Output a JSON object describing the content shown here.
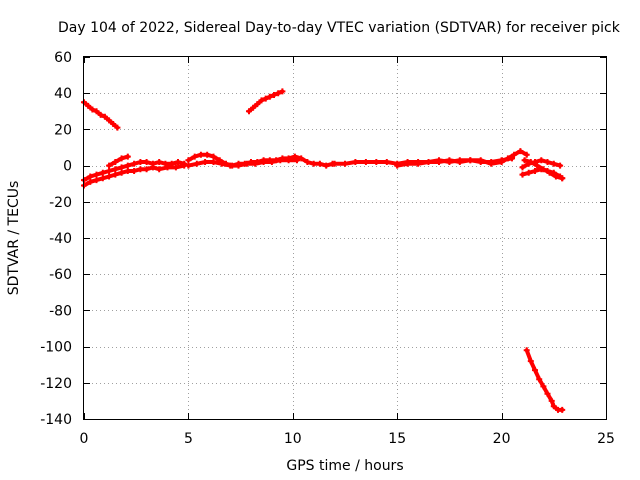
{
  "chart_data": {
    "type": "scatter",
    "title": "Day 104 of 2022, Sidereal Day-to-day VTEC variation (SDTVAR) for receiver pick",
    "xlabel": "GPS time / hours",
    "ylabel": "SDTVAR / TECUs",
    "xlim": [
      0,
      25
    ],
    "ylim": [
      -140,
      60
    ],
    "x_ticks": [
      0,
      5,
      10,
      15,
      20,
      25
    ],
    "y_ticks": [
      -140,
      -120,
      -100,
      -80,
      -60,
      -40,
      -20,
      0,
      20,
      40,
      60
    ],
    "grid": true,
    "legend": "none",
    "marker": "plus",
    "color": "#ff0000",
    "series": [
      {
        "x": [
          0.0,
          0.2,
          0.4,
          0.6,
          0.8,
          1.0,
          1.2,
          1.4,
          1.6
        ],
        "y": [
          35,
          33,
          31,
          30,
          28,
          27,
          25,
          23,
          21
        ]
      },
      {
        "x": [
          7.9,
          8.1,
          8.3,
          8.5,
          8.7,
          8.9,
          9.1,
          9.3,
          9.5
        ],
        "y": [
          30,
          32,
          34,
          36,
          37,
          38,
          39,
          40,
          41
        ]
      },
      {
        "x": [
          0.0,
          0.3,
          0.6,
          0.9,
          1.2,
          1.5,
          1.8,
          2.1,
          2.4,
          2.7,
          3.0,
          3.3,
          3.6,
          3.9,
          4.2,
          4.5,
          4.8
        ],
        "y": [
          -8,
          -6,
          -5,
          -4,
          -3,
          -2,
          -1,
          0,
          1,
          2,
          2,
          1,
          2,
          1,
          1,
          2,
          1
        ]
      },
      {
        "x": [
          0.0,
          0.3,
          0.6,
          0.9,
          1.2,
          1.5,
          1.8,
          2.1,
          2.4,
          2.7,
          3.0,
          3.3,
          3.6,
          4.0,
          4.4,
          4.8
        ],
        "y": [
          -11,
          -9,
          -8,
          -7,
          -6,
          -5,
          -4,
          -3,
          -3,
          -2,
          -2,
          -1,
          -2,
          -1,
          -1,
          0
        ]
      },
      {
        "x": [
          1.2,
          1.5,
          1.8,
          2.1
        ],
        "y": [
          0,
          2,
          4,
          5
        ]
      },
      {
        "x": [
          5.0,
          5.3,
          5.6,
          5.9,
          6.2,
          6.5,
          6.8,
          7.1,
          7.4,
          7.7,
          8.0,
          8.3,
          8.6,
          8.9,
          9.2,
          9.5,
          9.8,
          10.1,
          10.4,
          10.7,
          11.0,
          11.3,
          11.6,
          11.9
        ],
        "y": [
          3,
          5,
          6,
          6,
          5,
          3,
          1,
          0,
          1,
          1,
          2,
          2,
          3,
          3,
          3,
          4,
          4,
          5,
          4,
          2,
          1,
          1,
          0,
          1
        ]
      },
      {
        "x": [
          5.0,
          5.4,
          5.8,
          6.2,
          6.6,
          7.0,
          7.4,
          7.8,
          8.2,
          8.6,
          9.0,
          9.4,
          9.8,
          10.2
        ],
        "y": [
          0,
          1,
          2,
          2,
          1,
          0,
          0,
          1,
          1,
          2,
          2,
          3,
          3,
          3
        ]
      },
      {
        "x": [
          12.0,
          12.5,
          13.0,
          13.5,
          14.0,
          14.5,
          15.0,
          15.5,
          16.0,
          16.5,
          17.0,
          17.5,
          18.0,
          18.5,
          19.0,
          19.5,
          20.0,
          20.3,
          20.6,
          20.9,
          21.2
        ],
        "y": [
          1,
          1,
          2,
          2,
          2,
          2,
          1,
          2,
          2,
          2,
          3,
          2,
          3,
          3,
          3,
          1,
          2,
          4,
          6,
          8,
          6
        ]
      },
      {
        "x": [
          15.0,
          15.5,
          16.0,
          16.5,
          17.0,
          17.5,
          18.0,
          18.5,
          19.0,
          19.5,
          20.0,
          20.5
        ],
        "y": [
          0,
          1,
          1,
          2,
          2,
          3,
          2,
          3,
          2,
          2,
          3,
          4
        ]
      },
      {
        "x": [
          21.0,
          21.3,
          21.6,
          21.9,
          22.2,
          22.5,
          22.8,
          22.9
        ],
        "y": [
          -5,
          -4,
          -3,
          -2,
          -3,
          -4,
          -6,
          -7
        ]
      },
      {
        "x": [
          21.0,
          21.3,
          21.6,
          21.9,
          22.2,
          22.5,
          22.8
        ],
        "y": [
          -1,
          1,
          2,
          3,
          2,
          1,
          0
        ]
      },
      {
        "x": [
          21.1,
          21.4,
          21.7,
          22.0,
          22.3,
          22.6,
          22.9
        ],
        "y": [
          3,
          2,
          0,
          -2,
          -4,
          -6,
          -7
        ]
      },
      {
        "x": [
          21.2,
          21.4,
          21.6,
          21.8,
          22.0,
          22.2,
          22.4,
          22.5,
          22.7,
          22.9
        ],
        "y": [
          -102,
          -108,
          -113,
          -118,
          -122,
          -126,
          -130,
          -133,
          -135,
          -135
        ]
      }
    ]
  }
}
